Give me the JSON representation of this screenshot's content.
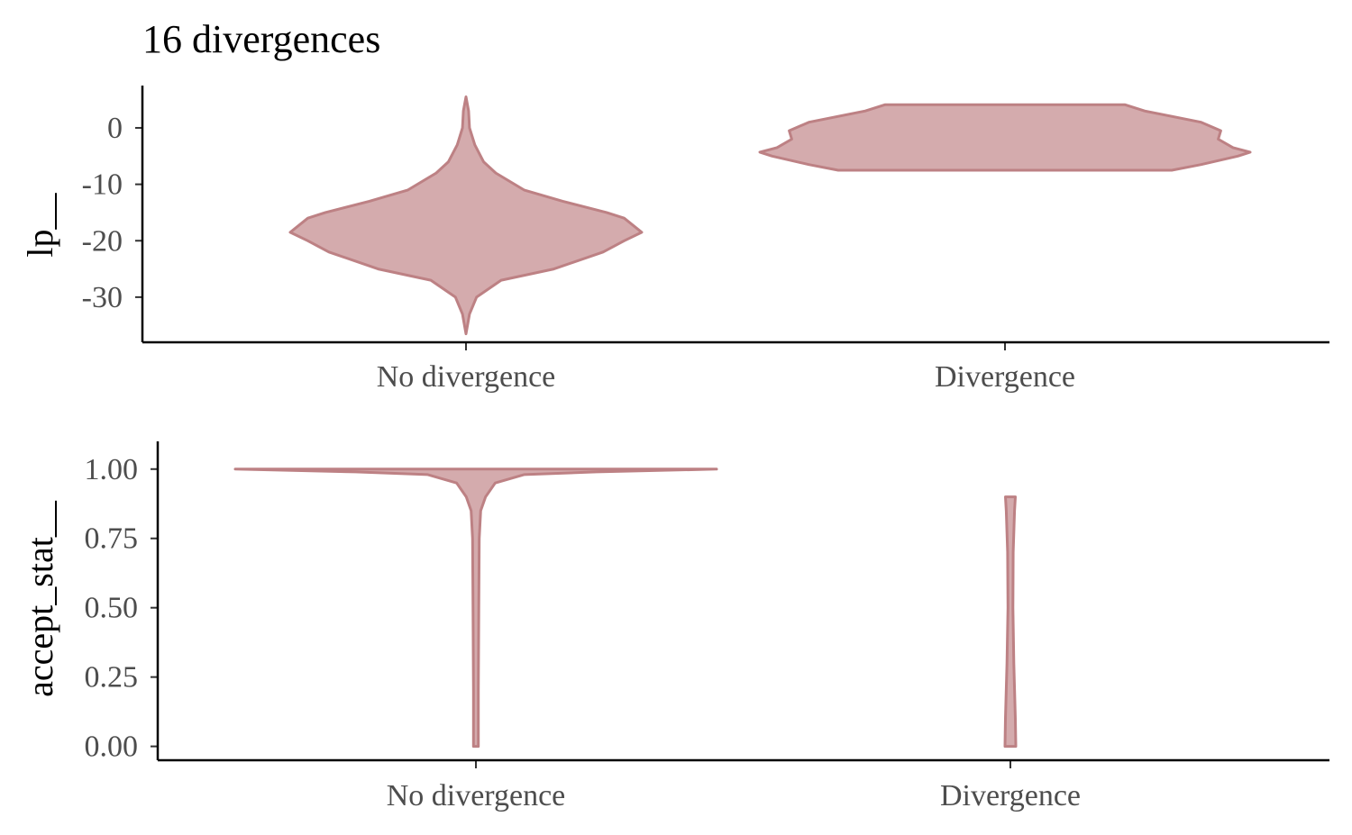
{
  "title": "16 divergences",
  "colors": {
    "violin_fill": "#d4abad",
    "violin_stroke": "#bd8184",
    "axis": "#000000",
    "tick_text": "#4d4d4d"
  },
  "chart_data": [
    {
      "type": "violin",
      "ylabel": "lp__",
      "categories": [
        "No divergence",
        "Divergence"
      ],
      "ylim": [
        -38,
        7.5
      ],
      "yticks": [
        0,
        -10,
        -20,
        -30
      ],
      "ytick_labels": [
        "0",
        "-10",
        "-20",
        "-30"
      ],
      "series": [
        {
          "category": "No divergence",
          "density": [
            [
              -36.5,
              0.0
            ],
            [
              -33,
              0.02
            ],
            [
              -30,
              0.06
            ],
            [
              -27,
              0.2
            ],
            [
              -25,
              0.5
            ],
            [
              -22,
              0.78
            ],
            [
              -20,
              0.9
            ],
            [
              -18.5,
              1.0
            ],
            [
              -16,
              0.9
            ],
            [
              -15,
              0.8
            ],
            [
              -13,
              0.55
            ],
            [
              -11,
              0.33
            ],
            [
              -8,
              0.17
            ],
            [
              -6,
              0.1
            ],
            [
              -3,
              0.05
            ],
            [
              0,
              0.02
            ],
            [
              3,
              0.015
            ],
            [
              5.5,
              0.0
            ]
          ]
        },
        {
          "category": "Divergence",
          "density": [
            [
              -7.5,
              0.68
            ],
            [
              -6.5,
              0.8
            ],
            [
              -5,
              0.95
            ],
            [
              -4.3,
              1.0
            ],
            [
              -3.5,
              0.93
            ],
            [
              -2,
              0.87
            ],
            [
              -0.5,
              0.88
            ],
            [
              1,
              0.8
            ],
            [
              3,
              0.57
            ],
            [
              4.1,
              0.49
            ]
          ]
        }
      ]
    },
    {
      "type": "violin",
      "ylabel": "accept_stat__",
      "categories": [
        "No divergence",
        "Divergence"
      ],
      "ylim": [
        -0.05,
        1.1
      ],
      "yticks": [
        0.0,
        0.25,
        0.5,
        0.75,
        1.0
      ],
      "ytick_labels": [
        "0.00",
        "0.25",
        "0.50",
        "0.75",
        "1.00"
      ],
      "series": [
        {
          "category": "No divergence",
          "density": [
            [
              0.0,
              0.01
            ],
            [
              0.2,
              0.01
            ],
            [
              0.5,
              0.012
            ],
            [
              0.75,
              0.014
            ],
            [
              0.85,
              0.02
            ],
            [
              0.9,
              0.04
            ],
            [
              0.95,
              0.08
            ],
            [
              0.98,
              0.2
            ],
            [
              0.99,
              0.5
            ],
            [
              1.0,
              1.0
            ]
          ]
        },
        {
          "category": "Divergence",
          "density": [
            [
              0.0,
              0.55
            ],
            [
              0.1,
              0.5
            ],
            [
              0.3,
              0.35
            ],
            [
              0.5,
              0.25
            ],
            [
              0.7,
              0.28
            ],
            [
              0.85,
              0.42
            ],
            [
              0.9,
              0.5
            ]
          ]
        }
      ]
    }
  ]
}
